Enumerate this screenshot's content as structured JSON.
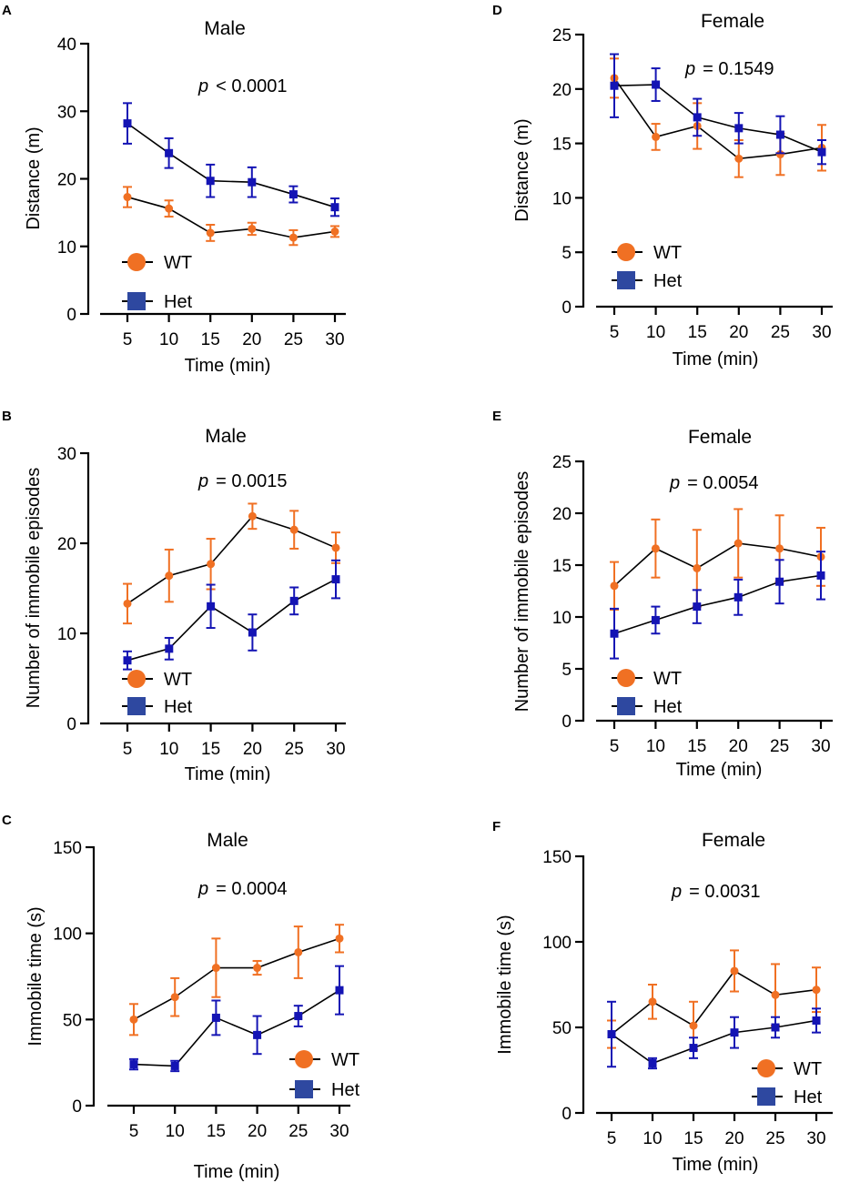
{
  "colors": {
    "wt": "#f07023",
    "het": "#1414b4",
    "het_legend": "#2e48a0",
    "axis": "#000000"
  },
  "chart_data": [
    {
      "panel": "A",
      "type": "line",
      "title": "Male",
      "xlabel": "Time (min)",
      "ylabel": "Distance (m)",
      "x": [
        5,
        10,
        15,
        20,
        25,
        30
      ],
      "xlim": [
        2,
        32
      ],
      "ylim": [
        0,
        40
      ],
      "yticks": [
        0,
        10,
        20,
        30,
        40
      ],
      "annotation": {
        "p": "p",
        "text": "< 0.0001"
      },
      "legend": [
        "WT",
        "Het"
      ],
      "series": [
        {
          "name": "WT",
          "values": [
            17.3,
            15.6,
            12.0,
            12.6,
            11.3,
            12.2
          ],
          "errors": [
            1.5,
            1.2,
            1.2,
            0.9,
            1.1,
            0.8
          ]
        },
        {
          "name": "Het",
          "values": [
            28.2,
            23.8,
            19.7,
            19.5,
            17.7,
            15.8
          ],
          "errors": [
            3.0,
            2.2,
            2.4,
            2.2,
            1.2,
            1.3
          ]
        }
      ]
    },
    {
      "panel": "B",
      "type": "line",
      "title": "Male",
      "xlabel": "Time (min)",
      "ylabel": "Number of immobile episodes",
      "x": [
        5,
        10,
        15,
        20,
        25,
        30
      ],
      "xlim": [
        2,
        32
      ],
      "ylim": [
        0,
        30
      ],
      "yticks": [
        0,
        10,
        20,
        30
      ],
      "annotation": {
        "p": "p",
        "text": "= 0.0015"
      },
      "legend": [
        "WT",
        "Het"
      ],
      "series": [
        {
          "name": "WT",
          "values": [
            13.3,
            16.4,
            17.7,
            23.0,
            21.5,
            19.5
          ],
          "errors": [
            2.2,
            2.9,
            2.8,
            1.4,
            2.1,
            1.7
          ]
        },
        {
          "name": "Het",
          "values": [
            7.0,
            8.3,
            13.0,
            10.1,
            13.6,
            16.0
          ],
          "errors": [
            1.0,
            1.2,
            2.4,
            2.0,
            1.5,
            2.1
          ]
        }
      ]
    },
    {
      "panel": "C",
      "type": "line",
      "title": "Male",
      "xlabel": "Time (min)",
      "ylabel": "Immobile time (s)",
      "x": [
        5,
        10,
        15,
        20,
        25,
        30
      ],
      "xlim": [
        2,
        32
      ],
      "ylim": [
        0,
        150
      ],
      "yticks": [
        0,
        50,
        100,
        150
      ],
      "annotation": {
        "p": "p",
        "text": "= 0.0004"
      },
      "legend": [
        "WT",
        "Het"
      ],
      "series": [
        {
          "name": "WT",
          "values": [
            50,
            63,
            80,
            80,
            89,
            97
          ],
          "errors": [
            9,
            11,
            17,
            4,
            15,
            8
          ]
        },
        {
          "name": "Het",
          "values": [
            24,
            23,
            51,
            41,
            52,
            67
          ],
          "errors": [
            3,
            3,
            10,
            11,
            6,
            14
          ]
        }
      ]
    },
    {
      "panel": "D",
      "type": "line",
      "title": "Female",
      "xlabel": "Time (min)",
      "ylabel": "Distance (m)",
      "x": [
        5,
        10,
        15,
        20,
        25,
        30
      ],
      "xlim": [
        2,
        32
      ],
      "ylim": [
        0,
        25
      ],
      "yticks": [
        0,
        5,
        10,
        15,
        20,
        25
      ],
      "annotation": {
        "p": "p",
        "text": "= 0.1549"
      },
      "legend": [
        "WT",
        "Het"
      ],
      "series": [
        {
          "name": "WT",
          "values": [
            21.0,
            15.6,
            16.6,
            13.6,
            14.0,
            14.6
          ],
          "errors": [
            1.8,
            1.2,
            2.1,
            1.7,
            1.9,
            2.1
          ]
        },
        {
          "name": "Het",
          "values": [
            20.3,
            20.4,
            17.4,
            16.4,
            15.8,
            14.2
          ],
          "errors": [
            2.9,
            1.5,
            1.7,
            1.4,
            1.7,
            1.1
          ]
        }
      ]
    },
    {
      "panel": "E",
      "type": "line",
      "title": "Female",
      "xlabel": "Time (min)",
      "ylabel": "Number of immobile episodes",
      "x": [
        5,
        10,
        15,
        20,
        25,
        30
      ],
      "xlim": [
        2,
        32
      ],
      "ylim": [
        0,
        25
      ],
      "yticks": [
        0,
        5,
        10,
        15,
        20,
        25
      ],
      "annotation": {
        "p": "p",
        "text": "= 0.0054"
      },
      "legend": [
        "WT",
        "Het"
      ],
      "series": [
        {
          "name": "WT",
          "values": [
            13.0,
            16.6,
            14.7,
            17.1,
            16.6,
            15.8
          ],
          "errors": [
            2.3,
            2.8,
            3.7,
            3.3,
            3.2,
            2.8
          ]
        },
        {
          "name": "Het",
          "values": [
            8.4,
            9.7,
            11.0,
            11.9,
            13.4,
            14.0
          ],
          "errors": [
            2.4,
            1.3,
            1.6,
            1.7,
            2.1,
            2.3
          ]
        }
      ]
    },
    {
      "panel": "F",
      "type": "line",
      "title": "Female",
      "xlabel": "Time (min)",
      "ylabel": "Immobile time (s)",
      "x": [
        5,
        10,
        15,
        20,
        25,
        30
      ],
      "xlim": [
        2,
        32
      ],
      "ylim": [
        0,
        150
      ],
      "yticks": [
        0,
        50,
        100,
        150
      ],
      "annotation": {
        "p": "p",
        "text": "= 0.0031"
      },
      "legend": [
        "WT",
        "Het"
      ],
      "series": [
        {
          "name": "WT",
          "values": [
            46,
            65,
            51,
            83,
            69,
            72
          ],
          "errors": [
            8,
            10,
            14,
            12,
            18,
            13
          ]
        },
        {
          "name": "Het",
          "values": [
            46,
            29,
            38,
            47,
            50,
            54
          ],
          "errors": [
            19,
            3,
            6,
            9,
            6,
            7
          ]
        }
      ]
    }
  ]
}
